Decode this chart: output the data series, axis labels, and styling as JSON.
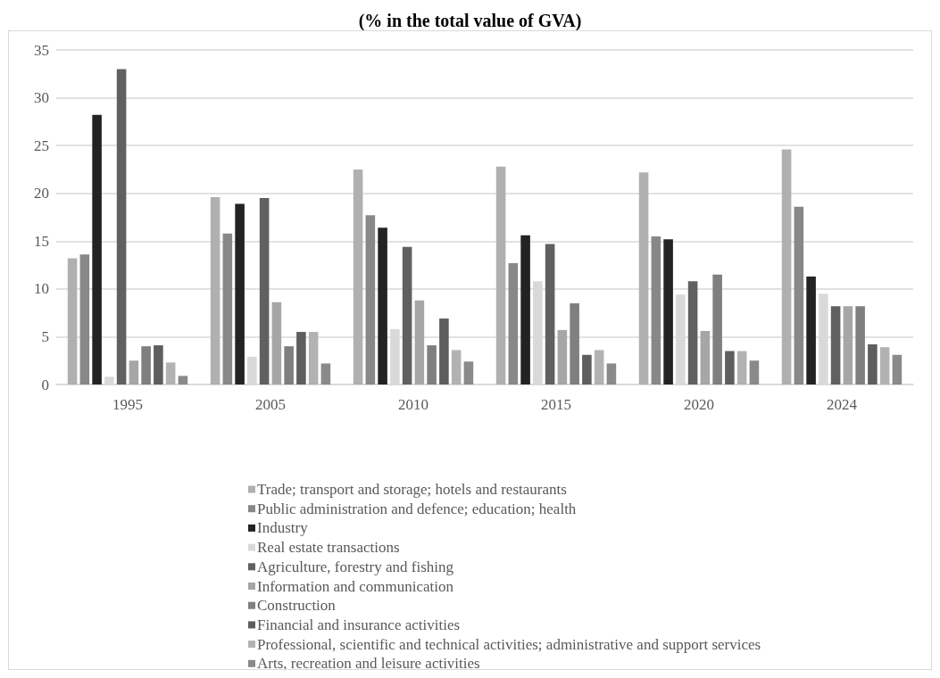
{
  "chart_data": {
    "type": "bar",
    "title": "(% in the total value of GVA)",
    "categories": [
      "1995",
      "2005",
      "2010",
      "2015",
      "2020",
      "2024"
    ],
    "series": [
      {
        "name": "Trade; transport and storage; hotels and restaurants",
        "color": "#b0b0b0",
        "values": [
          13.2,
          19.6,
          22.5,
          22.8,
          22.2,
          24.6
        ]
      },
      {
        "name": "Public administration and defence; education; health",
        "color": "#888888",
        "values": [
          13.6,
          15.8,
          17.7,
          12.7,
          15.5,
          18.6
        ]
      },
      {
        "name": "Industry",
        "color": "#232323",
        "values": [
          28.2,
          18.9,
          16.4,
          15.6,
          15.2,
          11.3
        ]
      },
      {
        "name": "Real estate transactions",
        "color": "#d9d9d9",
        "values": [
          0.8,
          2.9,
          5.8,
          10.8,
          9.4,
          9.5
        ]
      },
      {
        "name": "Agriculture, forestry and fishing",
        "color": "#606060",
        "values": [
          33.0,
          19.5,
          14.4,
          14.7,
          10.8,
          8.2
        ]
      },
      {
        "name": "Information and communication",
        "color": "#a6a6a6",
        "values": [
          2.5,
          8.6,
          8.8,
          5.7,
          5.6,
          8.2
        ]
      },
      {
        "name": "Construction",
        "color": "#7f7f7f",
        "values": [
          4.0,
          4.0,
          4.1,
          8.5,
          11.5,
          8.2
        ]
      },
      {
        "name": "Financial and insurance activities",
        "color": "#5e5e5e",
        "values": [
          4.1,
          5.5,
          6.9,
          3.1,
          3.5,
          4.2
        ]
      },
      {
        "name": "Professional, scientific and technical activities; administrative and support services",
        "color": "#b2b2b2",
        "values": [
          2.3,
          5.5,
          3.6,
          3.6,
          3.5,
          3.9
        ]
      },
      {
        "name": "Arts, recreation and leisure activities",
        "color": "#8a8a8a",
        "values": [
          0.9,
          2.2,
          2.4,
          2.2,
          2.5,
          3.1
        ]
      }
    ],
    "ylim": [
      0,
      35
    ],
    "yticks": [
      0,
      5,
      10,
      15,
      20,
      25,
      30,
      35
    ],
    "grid": "y",
    "legend": "bottom"
  }
}
